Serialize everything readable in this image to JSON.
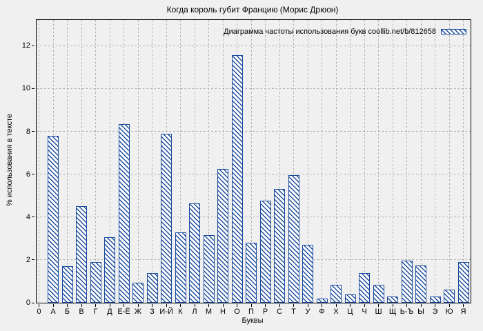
{
  "chart": {
    "title": "Когда король губит Францию (Морис Дрюон)",
    "xlabel": "Буквы",
    "ylabel": "% использования в тексте",
    "legend_label": "Диаграмма частоты использования букв coollib.net/b/812658",
    "colors": {
      "bar_hatch": "#1a4b9f",
      "bar_fill": "#ffffff",
      "grid": "#ababab",
      "frame": "#000000",
      "background": "#f0f0f0"
    }
  },
  "chart_data": {
    "type": "bar",
    "title": "Когда король губит Францию (Морис Дрюон)",
    "xlabel": "Буквы",
    "ylabel": "% использования в тексте",
    "legend": "Диаграмма частоты использования букв coollib.net/b/812658",
    "legend_position": "top-right",
    "grid": true,
    "x_origin_label": "0",
    "categories": [
      "А",
      "Б",
      "В",
      "Г",
      "Д",
      "Е-Ё",
      "Ж",
      "З",
      "И-Й",
      "К",
      "Л",
      "М",
      "Н",
      "О",
      "П",
      "Р",
      "С",
      "Т",
      "У",
      "Ф",
      "Х",
      "Ц",
      "Ч",
      "Ш",
      "Щ",
      "Ь-Ъ",
      "Ы",
      "Э",
      "Ю",
      "Я"
    ],
    "values": [
      7.8,
      1.7,
      4.5,
      1.9,
      3.05,
      8.35,
      0.95,
      1.4,
      7.9,
      3.3,
      4.65,
      3.15,
      6.25,
      11.55,
      2.8,
      4.75,
      5.3,
      5.95,
      2.7,
      0.2,
      0.85,
      0.4,
      1.4,
      0.85,
      0.3,
      1.95,
      1.75,
      0.3,
      0.6,
      1.9
    ],
    "yticks": [
      0,
      2,
      4,
      6,
      8,
      10,
      12
    ],
    "ylim": [
      0,
      13.2
    ],
    "bar_style": "white fill with blue diagonal hatch"
  }
}
